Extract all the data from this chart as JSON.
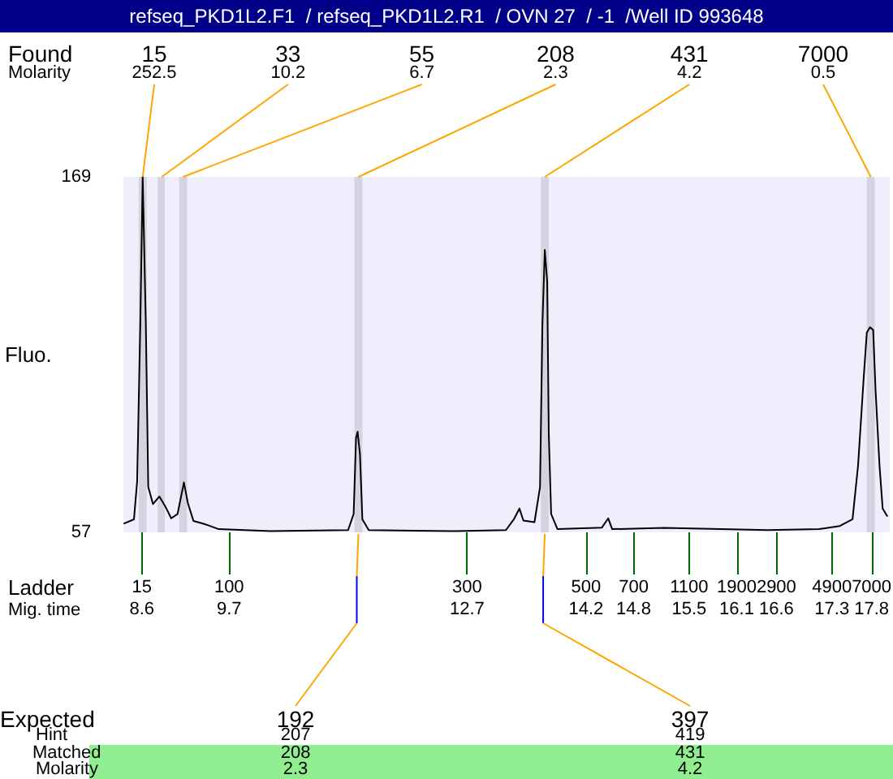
{
  "chart_data": {
    "type": "line",
    "title": "refseq_PKD1L2.F1  / refseq_PKD1L2.R1  / OVN 27  / -1  /Well ID 993648",
    "xlabel": "Mig. time",
    "ylabel": "Fluo.",
    "color": "#000000",
    "xlim": [
      8.37,
      18.03
    ],
    "ylim": [
      57,
      169
    ],
    "yticks": [
      57,
      169
    ],
    "xticks": [
      8.6,
      9.7,
      12.7,
      14.2,
      14.8,
      15.5,
      16.1,
      16.6,
      17.3,
      17.8
    ],
    "x": [
      8.37,
      8.5,
      8.54,
      8.58,
      8.61,
      8.65,
      8.68,
      8.74,
      8.82,
      8.89,
      8.97,
      9.05,
      9.13,
      9.18,
      9.25,
      9.38,
      9.57,
      10.22,
      11.2,
      11.27,
      11.3,
      11.32,
      11.35,
      11.38,
      11.46,
      12.51,
      12.57,
      13.19,
      13.29,
      13.36,
      13.41,
      13.55,
      13.62,
      13.65,
      13.68,
      13.71,
      13.73,
      13.76,
      13.84,
      14.4,
      14.48,
      14.53,
      15.18,
      16.49,
      17.14,
      17.4,
      17.56,
      17.63,
      17.7,
      17.74,
      17.78,
      17.82,
      17.85,
      17.9,
      17.94,
      18.0
    ],
    "values": [
      59.7,
      61.1,
      73,
      122.5,
      169,
      122.5,
      71.3,
      65.9,
      68.3,
      65.4,
      61.4,
      62.8,
      72.7,
      66.2,
      60.6,
      59.7,
      58.0,
      57.4,
      57.7,
      62.8,
      86.7,
      88.7,
      81.5,
      61.1,
      57.7,
      57.4,
      57.4,
      57.7,
      61.1,
      64.5,
      60.7,
      60.2,
      71.3,
      122.5,
      146,
      136,
      88.3,
      62.8,
      58.0,
      58.5,
      61.4,
      58.0,
      58.4,
      57.7,
      58.0,
      59.0,
      61.1,
      78.1,
      105.4,
      119.9,
      121.6,
      120.8,
      102.0,
      78.1,
      64.5,
      62.0
    ],
    "bands": [
      {
        "axis": "x",
        "from": 8.56,
        "to": 8.66,
        "color": "#d4d4e0"
      },
      {
        "axis": "x",
        "from": 8.8,
        "to": 8.89,
        "color": "#d4d4e0"
      },
      {
        "axis": "x",
        "from": 9.07,
        "to": 9.17,
        "color": "#d4d4e0"
      },
      {
        "axis": "x",
        "from": 11.28,
        "to": 11.38,
        "color": "#d4d4e0"
      },
      {
        "axis": "x",
        "from": 13.63,
        "to": 13.73,
        "color": "#d4d4e0"
      },
      {
        "axis": "x",
        "from": 17.74,
        "to": 17.84,
        "color": "#d4d4e0"
      }
    ],
    "annotations": [
      "Found",
      "Molarity",
      "Expected",
      "Hint",
      "Matched",
      "Molarity",
      "Ladder",
      "192\n207\n208\n2.3",
      "397\n419\n431\n4.2",
      {
        "text": "15\n252.5",
        "x": 8.61,
        "y": 169
      },
      {
        "text": "33\n10.2",
        "x": 8.85,
        "y": 169
      },
      {
        "text": "55\n6.7",
        "x": 9.12,
        "y": 169
      },
      {
        "text": "208\n2.3",
        "x": 11.33,
        "y": 169
      },
      {
        "text": "431\n4.2",
        "x": 13.68,
        "y": 169
      },
      {
        "text": "7000\n0.5",
        "x": 17.79,
        "y": 169
      },
      "15",
      "100",
      "300",
      "500",
      "700",
      "1100",
      "1900",
      "2900",
      "4900",
      "7000"
    ]
  }
}
